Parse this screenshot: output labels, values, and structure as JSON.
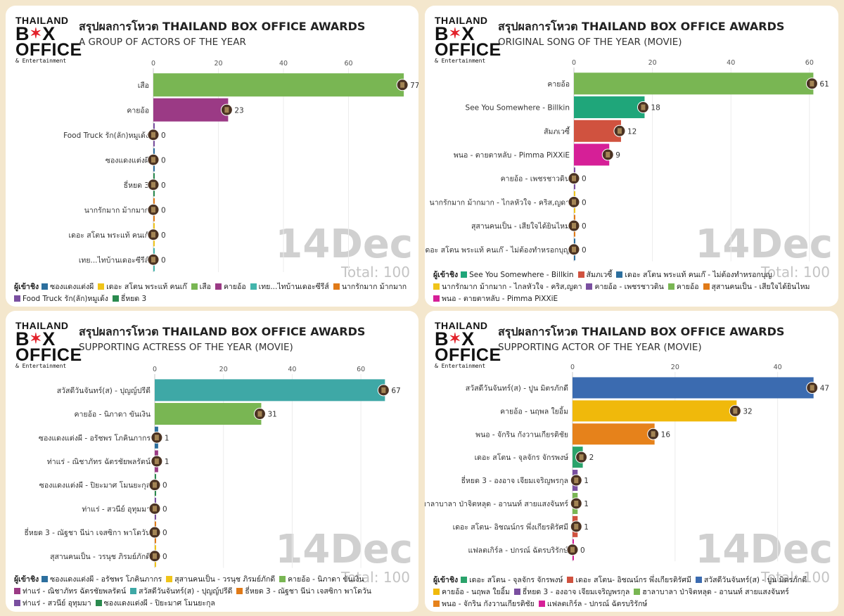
{
  "brand": {
    "line1": "THAILAND",
    "line2a": "B",
    "line2b": "X",
    "line3": "OFFICE",
    "line4": "& Entertainment"
  },
  "title": "สรุปผลการโหวต THAILAND BOX OFFICE AWARDS",
  "date_label": "14Dec",
  "total_label": "Total: 100",
  "legend_title": "ผู้เข้าชิง",
  "chart_data": [
    {
      "type": "bar",
      "subtitle": "A GROUP OF ACTORS OF THE YEAR",
      "xlim": [
        0,
        80
      ],
      "xticks": [
        0,
        20,
        40,
        60
      ],
      "categories": [
        "เสือ",
        "คายอ้อ",
        "Food Truck รัก(ลัก)หมูเด้ง",
        "ซองแดงแต่งผี",
        "ธี่หยด 3",
        "นากรักมาก ม้ากมาก",
        "เดอะ สโตน พระแท้ คนเก๊",
        "เทย...ไทบ้านเดอะซีรีส์"
      ],
      "values": [
        77,
        23,
        0,
        0,
        0,
        0,
        0,
        0
      ],
      "colors": [
        "#79b653",
        "#9b3a85",
        "#7a4fa0",
        "#2c6f9e",
        "#2a8a4e",
        "#e07a18",
        "#f0c419",
        "#43b5ac"
      ],
      "legend": [
        {
          "label": "ซองแดงแต่งผี",
          "color": "#2c6f9e"
        },
        {
          "label": "เดอะ สโตน พระแท้ คนเก๊",
          "color": "#f0c419"
        },
        {
          "label": "เสือ",
          "color": "#79b653"
        },
        {
          "label": "คายอ้อ",
          "color": "#9b3a85"
        },
        {
          "label": "เทย...ไทบ้านเดอะซีรีส์",
          "color": "#43b5ac"
        },
        {
          "label": "นากรักมาก ม้ากมาก",
          "color": "#e07a18"
        },
        {
          "label": "Food Truck รัก(ลัก)หมูเด้ง",
          "color": "#7a4fa0"
        },
        {
          "label": "ธี่หยด 3",
          "color": "#2a8a4e"
        }
      ]
    },
    {
      "type": "bar",
      "subtitle": "ORIGINAL SONG OF THE YEAR (MOVIE)",
      "xlim": [
        0,
        62
      ],
      "xticks": [
        0,
        20,
        40,
        60
      ],
      "categories": [
        "คายอ้อ",
        "See You Somewhere - Billkin",
        "สัมภเวซี้",
        "พนอ - ตายตาหลับ - Pimma PiXXiE",
        "คายอ้อ - เพชรชาวดิน",
        "นากรักมาก ม้ากมาก - ไกลหัวใจ - คริส,ญดา",
        "สุสานคนเป็น - เสียใจได้ยินไหม",
        "เดอะ สโตน พระแท้ คนเก๊ - ไม่ต้องทำหรอกบุญ"
      ],
      "values": [
        61,
        18,
        12,
        9,
        0,
        0,
        0,
        0
      ],
      "colors": [
        "#79b653",
        "#1fa67a",
        "#d0523f",
        "#d61f97",
        "#7a4fa0",
        "#f0c419",
        "#e07a18",
        "#2c6f9e"
      ],
      "legend": [
        {
          "label": "See You Somewhere - Billkin",
          "color": "#1fa67a"
        },
        {
          "label": "สัมภเวซี้",
          "color": "#d0523f"
        },
        {
          "label": "เดอะ สโตน พระแท้ คนเก๊ - ไม่ต้องทำหรอกบุญ",
          "color": "#2c6f9e"
        },
        {
          "label": "นากรักมาก ม้ากมาก - ไกลหัวใจ - คริส,ญดา",
          "color": "#f0c419"
        },
        {
          "label": "คายอ้อ - เพชรชาวดิน",
          "color": "#7a4fa0"
        },
        {
          "label": "คายอ้อ",
          "color": "#79b653"
        },
        {
          "label": "สุสานคนเป็น - เสียใจได้ยินไหม",
          "color": "#e07a18"
        },
        {
          "label": "พนอ - ตายตาหลับ - Pimma PiXXiE",
          "color": "#d61f97"
        }
      ]
    },
    {
      "type": "bar",
      "subtitle": "SUPPORTING ACTRESS OF THE YEAR (MOVIE)",
      "xlim": [
        0,
        70
      ],
      "xticks": [
        0,
        20,
        40,
        60
      ],
      "categories": [
        "สวัสดีวันจันทร์(ส) - ปุญญ์ปรีดี",
        "คายอ้อ - นิภาดา ขันเงิน",
        "ซองแดงแต่งผี - อรัชพร โภคินภากร",
        "ท่าแร่ - ณิชาภัทร ฉัตรชัยพลรัตน์",
        "ซองแดงแต่งผี - ปิยะมาศ โมนยะกุล",
        "ท่าแร่ - สวนีย์ อุทุมมา",
        "ธี่หยด 3 - ณัฐชา นีน่า เจสซิกา พาโดวัน",
        "สุสานคนเป็น - วรนุช ภิรมย์ภักดี"
      ],
      "values": [
        67,
        31,
        1,
        1,
        0,
        0,
        0,
        0
      ],
      "colors": [
        "#3ea8a6",
        "#79b653",
        "#2c6f9e",
        "#9b3a85",
        "#2a8a4e",
        "#7a4fa0",
        "#e07a18",
        "#f0c419"
      ],
      "legend": [
        {
          "label": "ซองแดงแต่งผี - อรัชพร โภคินภากร",
          "color": "#2c6f9e"
        },
        {
          "label": "สุสานคนเป็น - วรนุช ภิรมย์ภักดี",
          "color": "#f0c419"
        },
        {
          "label": "คายอ้อ - นิภาดา ขันเงิน",
          "color": "#79b653"
        },
        {
          "label": "ท่าแร่ - ณิชาภัทร ฉัตรชัยพลรัตน์",
          "color": "#9b3a85"
        },
        {
          "label": "สวัสดีวันจันทร์(ส) - ปุญญ์ปรีดี",
          "color": "#3ea8a6"
        },
        {
          "label": "ธี่หยด 3 - ณัฐชา นีน่า เจสซิกา พาโดวัน",
          "color": "#e07a18"
        },
        {
          "label": "ท่าแร่ - สวนีย์ อุทุมมา",
          "color": "#7a4fa0"
        },
        {
          "label": "ซองแดงแต่งผี - ปิยะมาศ โมนยะกุล",
          "color": "#2a8a4e"
        }
      ]
    },
    {
      "type": "bar",
      "subtitle": "SUPPORTING ACTOR OF THE YEAR (MOVIE)",
      "xlim": [
        0,
        48
      ],
      "xticks": [
        0,
        20,
        40
      ],
      "categories": [
        "สวัสดีวันจันทร์(ส) - ปูน มิตรภักดี",
        "คายอ้อ - นฤพล ใยอิ้ม",
        "พนอ - จักริน กังวานเกียรติชัย",
        "เดอะ สโตน - จุลจักร จักรพงษ์",
        "ธี่หยด 3 - องอาจ เจียมเจริญพรกุล",
        "ฮาลาบาลา ป่าจิตหลุด - อานนท์ สายแสงจันทร์",
        "เดอะ สโตน- อิชณน์กร พึ่งเกียรติรัศมี",
        "แฟลตเกิร์ล - ปกรณ์ ฉัตรบริรักษ์"
      ],
      "values": [
        47,
        32,
        16,
        2,
        1,
        1,
        1,
        0
      ],
      "colors": [
        "#3b6bb0",
        "#f0b90b",
        "#e6821b",
        "#2aa36b",
        "#7a4fa0",
        "#79b653",
        "#d0523f",
        "#d61f97"
      ],
      "legend": [
        {
          "label": "เดอะ สโตน - จุลจักร จักรพงษ์",
          "color": "#2aa36b"
        },
        {
          "label": "เดอะ สโตน- อิชณน์กร พึ่งเกียรติรัศมี",
          "color": "#d0523f"
        },
        {
          "label": "สวัสดีวันจันทร์(ส) - ปูน มิตรภักดี",
          "color": "#3b6bb0"
        },
        {
          "label": "คายอ้อ - นฤพล ใยอิ้ม",
          "color": "#f0b90b"
        },
        {
          "label": "ธี่หยด 3 - องอาจ เจียมเจริญพรกุล",
          "color": "#7a4fa0"
        },
        {
          "label": "ฮาลาบาลา ป่าจิตหลุด - อานนท์ สายแสงจันทร์",
          "color": "#79b653"
        },
        {
          "label": "พนอ - จักริน กังวานเกียรติชัย",
          "color": "#e6821b"
        },
        {
          "label": "แฟลตเกิร์ล - ปกรณ์ ฉัตรบริรักษ์",
          "color": "#d61f97"
        }
      ]
    }
  ]
}
